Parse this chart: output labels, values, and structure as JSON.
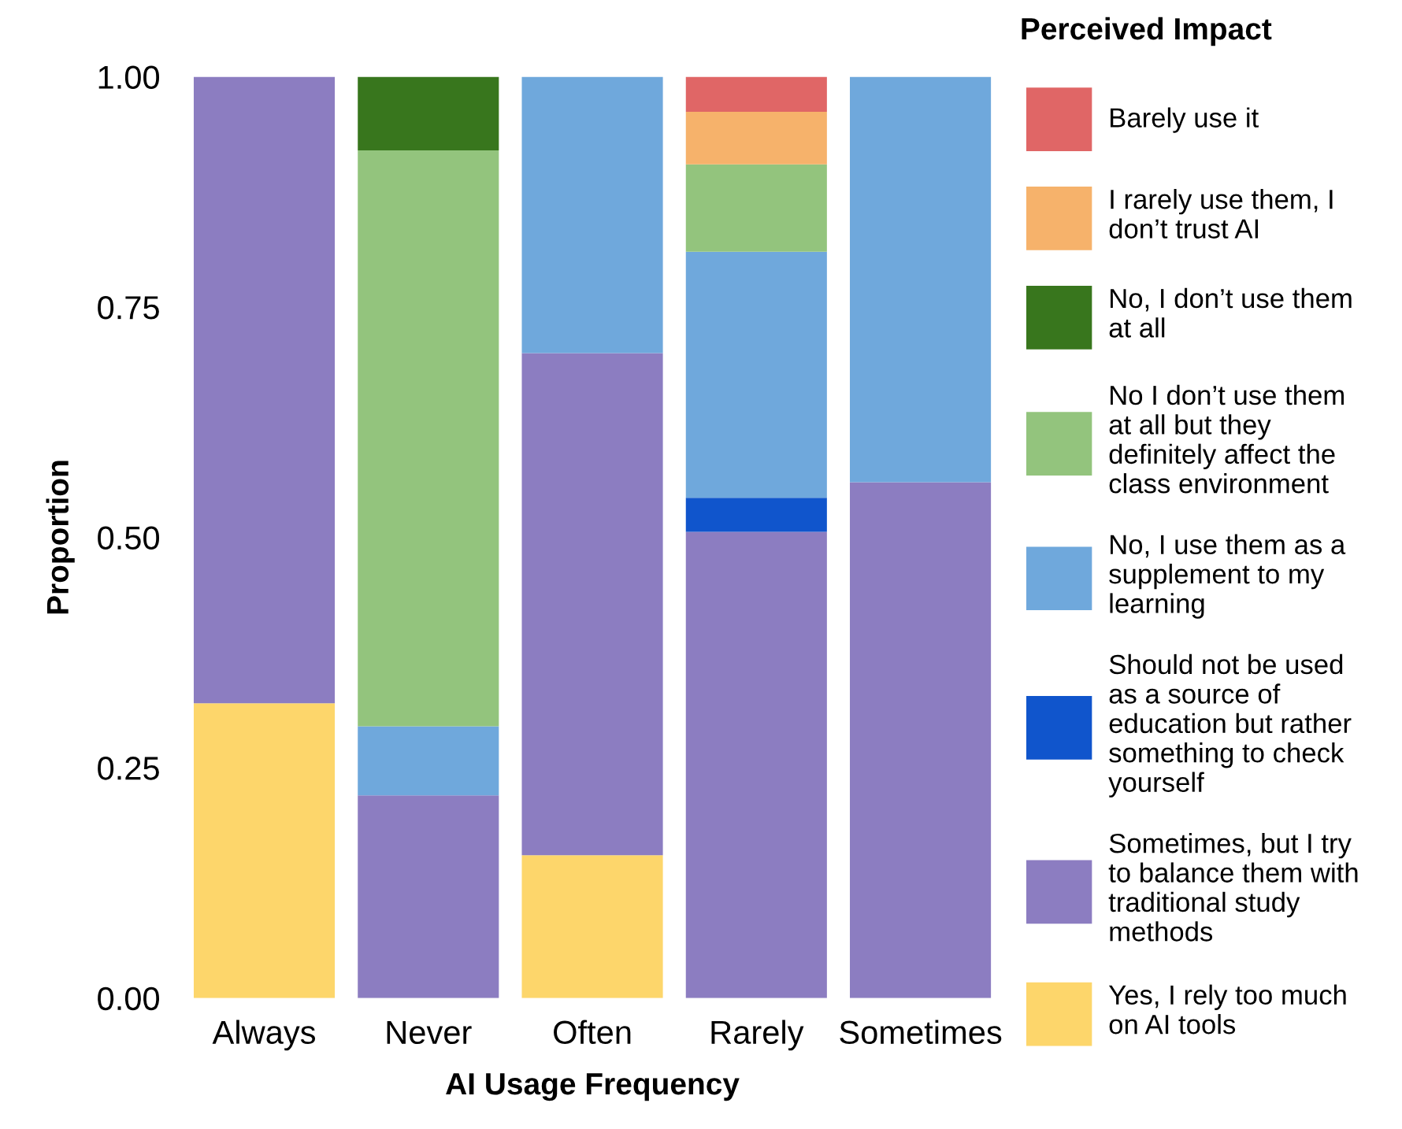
{
  "chart_data": {
    "type": "bar",
    "stacked": true,
    "xlabel": "AI Usage Frequency",
    "ylabel": "Proportion",
    "legend_title": "Perceived Impact",
    "categories": [
      "Always",
      "Never",
      "Often",
      "Rarely",
      "Sometimes"
    ],
    "series": [
      {
        "name": "Yes, I rely too much on AI tools",
        "color": "#fdd66b",
        "values": [
          0.32,
          0,
          0.155,
          0,
          0
        ]
      },
      {
        "name": "Sometimes, but I try to balance them with traditional study methods",
        "color": "#8c7dc1",
        "values": [
          0.68,
          0.22,
          0.545,
          0.506,
          0.56
        ]
      },
      {
        "name": "Should not be used as a source of education but rather something to check yourself",
        "color": "#1055cc",
        "values": [
          0,
          0,
          0,
          0.037,
          0
        ]
      },
      {
        "name": "No, I use them as a supplement to my learning",
        "color": "#6fa8dc",
        "values": [
          0,
          0.075,
          0.3,
          0.267,
          0.44
        ]
      },
      {
        "name": "No I don’t use them at all but they definitely affect the class environment",
        "color": "#93c47d",
        "values": [
          0,
          0.625,
          0,
          0.095,
          0
        ]
      },
      {
        "name": "No, I don’t use them at all",
        "color": "#38761d",
        "values": [
          0,
          0.08,
          0,
          0,
          0
        ]
      },
      {
        "name": "I rarely use them, I don’t trust AI",
        "color": "#f6b26b",
        "values": [
          0,
          0,
          0,
          0.057,
          0
        ]
      },
      {
        "name": "Barely use it",
        "color": "#e06666",
        "values": [
          0,
          0,
          0,
          0.038,
          0
        ]
      }
    ],
    "ylim": [
      0,
      1
    ],
    "yticks": [
      {
        "value": 0,
        "label": "0.00"
      },
      {
        "value": 0.25,
        "label": "0.25"
      },
      {
        "value": 0.5,
        "label": "0.50"
      },
      {
        "value": 0.75,
        "label": "0.75"
      },
      {
        "value": 1,
        "label": "1.00"
      }
    ],
    "grid": false,
    "legend": "right"
  }
}
